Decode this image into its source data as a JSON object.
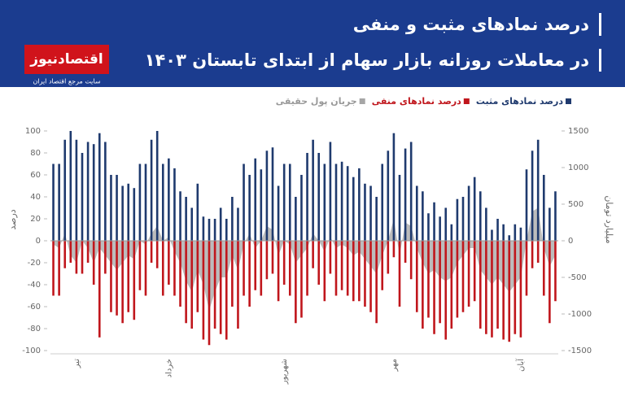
{
  "header": {
    "logo": "اقتصادنیوز",
    "logo_tagline": "سایت مرجع اقتصاد ایران"
  },
  "chart_data": {
    "type": "bar",
    "title": "درصد نمادهای مثبت و منفی",
    "subtitle": "در معاملات روزانه بازار سهام از ابتدای تابستان ۱۴۰۳",
    "y_label": "درصد",
    "y2_label": "میلیارد تومان",
    "categories": [
      null,
      null,
      null,
      null,
      "تیر",
      null,
      null,
      null,
      null,
      null,
      null,
      null,
      null,
      null,
      null,
      null,
      null,
      null,
      null,
      null,
      "خرداد",
      null,
      null,
      null,
      null,
      null,
      null,
      null,
      null,
      null,
      null,
      null,
      null,
      null,
      null,
      null,
      null,
      null,
      null,
      null,
      "شهریور",
      null,
      null,
      null,
      null,
      null,
      null,
      null,
      null,
      null,
      null,
      null,
      null,
      null,
      null,
      null,
      null,
      null,
      null,
      "مهر",
      null,
      null,
      null,
      null,
      null,
      null,
      null,
      null,
      null,
      null,
      null,
      null,
      null,
      null,
      null,
      null,
      null,
      null,
      null,
      null,
      null,
      "آبان",
      null,
      null,
      null,
      null,
      null,
      null
    ],
    "series": [
      {
        "name": "درصد نمادهای مثبت",
        "color": "#1f3a6e",
        "values": [
          70,
          70,
          92,
          100,
          92,
          80,
          90,
          88,
          98,
          90,
          60,
          60,
          50,
          52,
          48,
          70,
          70,
          92,
          100,
          70,
          75,
          66,
          45,
          40,
          30,
          52,
          22,
          20,
          20,
          30,
          20,
          40,
          30,
          70,
          60,
          75,
          65,
          82,
          85,
          50,
          70,
          70,
          40,
          60,
          80,
          92,
          80,
          70,
          90,
          70,
          72,
          68,
          58,
          66,
          52,
          50,
          40,
          70,
          82,
          98,
          60,
          84,
          90,
          50,
          45,
          25,
          35,
          22,
          30,
          15,
          38,
          40,
          50,
          58,
          45,
          30,
          10,
          20,
          15,
          5,
          15,
          12,
          65,
          82,
          92,
          60,
          30,
          45
        ]
      },
      {
        "name": "درصد نمادهای منفی",
        "color": "#c0161c",
        "values": [
          -50,
          -50,
          -25,
          -20,
          -30,
          -30,
          -20,
          -40,
          -88,
          -30,
          -65,
          -68,
          -75,
          -65,
          -72,
          -45,
          -50,
          -20,
          -25,
          -50,
          -40,
          -50,
          -60,
          -75,
          -80,
          -65,
          -90,
          -95,
          -80,
          -85,
          -90,
          -60,
          -80,
          -50,
          -60,
          -45,
          -50,
          -35,
          -30,
          -55,
          -40,
          -50,
          -75,
          -70,
          -50,
          -25,
          -40,
          -55,
          -30,
          -50,
          -45,
          -50,
          -55,
          -55,
          -60,
          -65,
          -75,
          -45,
          -30,
          -15,
          -60,
          -20,
          -35,
          -65,
          -80,
          -70,
          -85,
          -75,
          -90,
          -80,
          -70,
          -65,
          -60,
          -55,
          -80,
          -85,
          -88,
          -80,
          -90,
          -92,
          -85,
          -88,
          -50,
          -25,
          -20,
          -50,
          -75,
          -55
        ]
      },
      {
        "name": "جریان پول حقیقی",
        "color": "#a6a6a6",
        "axis": "y2",
        "values": [
          -50,
          -100,
          100,
          -200,
          -300,
          0,
          -100,
          -300,
          -100,
          -200,
          -300,
          -400,
          -300,
          -200,
          -250,
          0,
          -50,
          100,
          200,
          0,
          50,
          -150,
          -300,
          -550,
          -700,
          -400,
          -600,
          -950,
          -700,
          -500,
          -500,
          -200,
          -400,
          -50,
          100,
          -100,
          0,
          200,
          150,
          -200,
          0,
          -50,
          -300,
          -200,
          -100,
          100,
          0,
          -150,
          50,
          -100,
          -50,
          -100,
          -200,
          -150,
          -250,
          -350,
          -450,
          -200,
          0,
          300,
          -200,
          250,
          200,
          -100,
          -300,
          -450,
          -400,
          -500,
          -550,
          -500,
          -300,
          -200,
          -100,
          -100,
          -400,
          -500,
          -600,
          -500,
          -600,
          -700,
          -600,
          -500,
          0,
          400,
          450,
          -100,
          -350,
          -200
        ]
      }
    ],
    "ylim": [
      -100,
      100
    ],
    "yticks": [
      100,
      80,
      60,
      40,
      20,
      0,
      -20,
      -40,
      -60,
      -80,
      -100
    ],
    "y2lim": [
      -1500,
      1500
    ],
    "y2ticks": [
      1500,
      1000,
      500,
      0,
      -500,
      -1000,
      -1500
    ]
  }
}
